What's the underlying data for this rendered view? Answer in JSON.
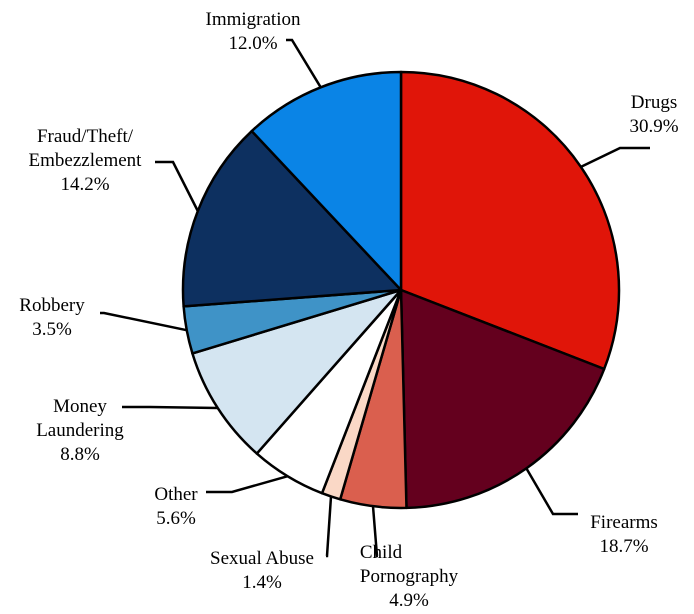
{
  "chart_data": {
    "type": "pie",
    "title": "",
    "slices": [
      {
        "name": "Drugs",
        "label_lines": [
          "Drugs"
        ],
        "value": 30.9,
        "pct_label": "30.9%",
        "color": "#e01509"
      },
      {
        "name": "Firearms",
        "label_lines": [
          "Firearms"
        ],
        "value": 18.7,
        "pct_label": "18.7%",
        "color": "#64001e"
      },
      {
        "name": "Child Pornography",
        "label_lines": [
          "Child",
          "Pornography"
        ],
        "value": 4.9,
        "pct_label": "4.9%",
        "color": "#da5f4e"
      },
      {
        "name": "Sexual Abuse",
        "label_lines": [
          "Sexual Abuse"
        ],
        "value": 1.4,
        "pct_label": "1.4%",
        "color": "#fad8c6"
      },
      {
        "name": "Other",
        "label_lines": [
          "Other"
        ],
        "value": 5.6,
        "pct_label": "5.6%",
        "color": "#ffffff"
      },
      {
        "name": "Money Laundering",
        "label_lines": [
          "Money",
          "Laundering"
        ],
        "value": 8.8,
        "pct_label": "8.8%",
        "color": "#d4e5f1"
      },
      {
        "name": "Robbery",
        "label_lines": [
          "Robbery"
        ],
        "value": 3.5,
        "pct_label": "3.5%",
        "color": "#3f93c7"
      },
      {
        "name": "Fraud/Theft/Embezzlement",
        "label_lines": [
          "Fraud/Theft/",
          "Embezzlement"
        ],
        "value": 14.2,
        "pct_label": "14.2%",
        "color": "#0d3060"
      },
      {
        "name": "Immigration",
        "label_lines": [
          "Immigration"
        ],
        "value": 12.0,
        "pct_label": "12.0%",
        "color": "#0a84e6"
      }
    ]
  }
}
